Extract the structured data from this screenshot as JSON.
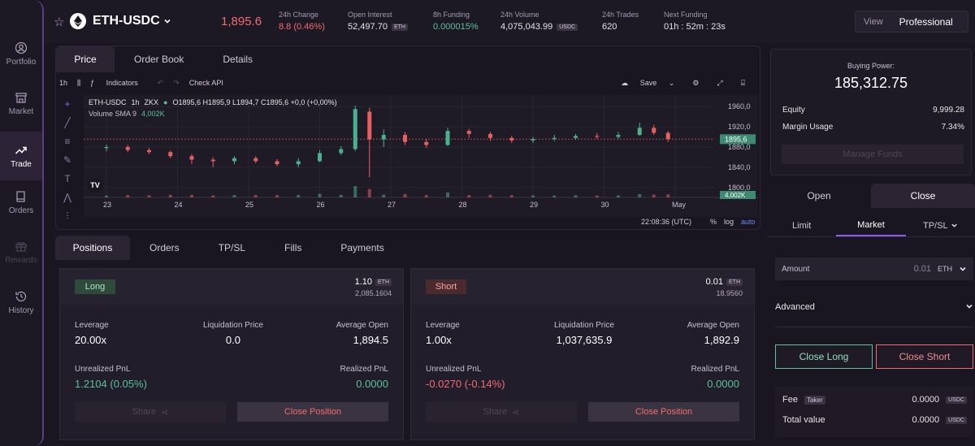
{
  "sidebar": {
    "items": [
      {
        "label": "Portfolio"
      },
      {
        "label": "Market"
      },
      {
        "label": "Trade"
      },
      {
        "label": "Orders"
      },
      {
        "label": "Rewards"
      },
      {
        "label": "History"
      }
    ]
  },
  "header": {
    "market": "ETH-USDC",
    "price": "1,895.6",
    "stats": [
      {
        "label": "24h Change",
        "value": "8.8 (0.46%)"
      },
      {
        "label": "Open Interest",
        "value": "52,497.70",
        "unit": "ETH"
      },
      {
        "label": "8h Funding",
        "value": "0.000015%"
      },
      {
        "label": "24h Volume",
        "value": "4,075,043.99",
        "unit": "USDC"
      },
      {
        "label": "24h Trades",
        "value": "620"
      },
      {
        "label": "Next Funding",
        "value": "01h : 52m : 23s"
      }
    ],
    "view_label": "View",
    "view_value": "Professional"
  },
  "chart_panel": {
    "tabs": [
      "Price",
      "Order Book",
      "Details"
    ],
    "toolbar": {
      "interval": "1h",
      "indicators": "Indicators",
      "check_api": "Check API",
      "save": "Save"
    },
    "legend": {
      "symbol": "ETH-USDC",
      "interval": "1h",
      "exchange": "ZKX",
      "ohlc": "O1895,6 H1895,9 L1894,7 C1895,6 +0,0 (+0,00%)",
      "volume": "Volume SMA 9",
      "volume_value": "4,002K"
    },
    "bottom": {
      "time": "22:08:36 (UTC)",
      "percent": "%",
      "log": "log",
      "auto": "auto"
    }
  },
  "chart_data": {
    "type": "candlestick",
    "x_ticks": [
      "23",
      "24",
      "25",
      "26",
      "27",
      "28",
      "29",
      "30",
      "May"
    ],
    "y_ticks": [
      1960,
      1920,
      1880,
      1840,
      1800
    ],
    "ylim": [
      1790,
      1970
    ],
    "last_price_label": "1895,6",
    "volume_label": "4,002K",
    "color_up": "#4caf8d",
    "color_down": "#e5605f",
    "series": [
      {
        "x": 0.0,
        "o": 1878,
        "c": 1880,
        "h": 1885,
        "l": 1872
      },
      {
        "x": 0.3,
        "o": 1880,
        "c": 1874,
        "h": 1884,
        "l": 1870
      },
      {
        "x": 0.6,
        "o": 1874,
        "c": 1870,
        "h": 1878,
        "l": 1866
      },
      {
        "x": 0.9,
        "o": 1870,
        "c": 1862,
        "h": 1873,
        "l": 1858
      },
      {
        "x": 1.2,
        "o": 1862,
        "c": 1855,
        "h": 1866,
        "l": 1846
      },
      {
        "x": 1.5,
        "o": 1855,
        "c": 1852,
        "h": 1860,
        "l": 1840
      },
      {
        "x": 1.8,
        "o": 1852,
        "c": 1858,
        "h": 1862,
        "l": 1846
      },
      {
        "x": 2.1,
        "o": 1858,
        "c": 1852,
        "h": 1862,
        "l": 1848
      },
      {
        "x": 2.4,
        "o": 1852,
        "c": 1846,
        "h": 1856,
        "l": 1842
      },
      {
        "x": 2.7,
        "o": 1846,
        "c": 1852,
        "h": 1858,
        "l": 1840
      },
      {
        "x": 3.0,
        "o": 1852,
        "c": 1868,
        "h": 1874,
        "l": 1850
      },
      {
        "x": 3.3,
        "o": 1868,
        "c": 1876,
        "h": 1882,
        "l": 1864
      },
      {
        "x": 3.5,
        "o": 1876,
        "c": 1955,
        "h": 1962,
        "l": 1872
      },
      {
        "x": 3.7,
        "o": 1950,
        "c": 1895,
        "h": 1958,
        "l": 1820
      },
      {
        "x": 3.9,
        "o": 1895,
        "c": 1904,
        "h": 1915,
        "l": 1880
      },
      {
        "x": 4.2,
        "o": 1904,
        "c": 1890,
        "h": 1910,
        "l": 1884
      },
      {
        "x": 4.5,
        "o": 1890,
        "c": 1884,
        "h": 1896,
        "l": 1878
      },
      {
        "x": 4.8,
        "o": 1884,
        "c": 1912,
        "h": 1918,
        "l": 1882
      },
      {
        "x": 5.1,
        "o": 1912,
        "c": 1906,
        "h": 1916,
        "l": 1898
      },
      {
        "x": 5.4,
        "o": 1906,
        "c": 1898,
        "h": 1910,
        "l": 1892
      },
      {
        "x": 5.7,
        "o": 1898,
        "c": 1893,
        "h": 1902,
        "l": 1888
      },
      {
        "x": 6.0,
        "o": 1893,
        "c": 1896,
        "h": 1900,
        "l": 1888
      },
      {
        "x": 6.3,
        "o": 1896,
        "c": 1898,
        "h": 1904,
        "l": 1892
      },
      {
        "x": 6.6,
        "o": 1898,
        "c": 1902,
        "h": 1906,
        "l": 1894
      },
      {
        "x": 6.9,
        "o": 1902,
        "c": 1900,
        "h": 1908,
        "l": 1896
      },
      {
        "x": 7.2,
        "o": 1900,
        "c": 1904,
        "h": 1910,
        "l": 1896
      },
      {
        "x": 7.5,
        "o": 1904,
        "c": 1918,
        "h": 1928,
        "l": 1902
      },
      {
        "x": 7.7,
        "o": 1918,
        "c": 1908,
        "h": 1924,
        "l": 1904
      },
      {
        "x": 7.9,
        "o": 1908,
        "c": 1896,
        "h": 1912,
        "l": 1890
      }
    ]
  },
  "positions_panel": {
    "tabs": [
      "Positions",
      "Orders",
      "TP/SL",
      "Fills",
      "Payments"
    ],
    "cards": [
      {
        "side": "Long",
        "size": "1.10",
        "size_unit": "ETH",
        "notional": "2,085.1604",
        "leverage_label": "Leverage",
        "leverage": "20.00x",
        "liq_label": "Liquidation Price",
        "liq": "0.0",
        "avg_label": "Average Open",
        "avg": "1,894.5",
        "upnl_label": "Unrealized PnL",
        "upnl": "1.2104 (0.05%)",
        "rpnl_label": "Realized PnL",
        "rpnl": "0.0000",
        "share": "Share",
        "close": "Close Position"
      },
      {
        "side": "Short",
        "size": "0.01",
        "size_unit": "ETH",
        "notional": "18.9560",
        "leverage_label": "Leverage",
        "leverage": "1.00x",
        "liq_label": "Liquidation Price",
        "liq": "1,037,635.9",
        "avg_label": "Average Open",
        "avg": "1,892.9",
        "upnl_label": "Unrealized PnL",
        "upnl": "-0.0270 (-0.14%)",
        "rpnl_label": "Realized PnL",
        "rpnl": "0.0000",
        "share": "Share",
        "close": "Close Position"
      }
    ]
  },
  "account": {
    "buying_power_label": "Buying Power:",
    "buying_power": "185,312.75",
    "equity_label": "Equity",
    "equity": "9,999.28",
    "margin_label": "Margin Usage",
    "margin": "7.34%",
    "manage_funds": "Manage Funds"
  },
  "order_form": {
    "open_close": [
      "Open",
      "Close"
    ],
    "types": [
      "Limit",
      "Market",
      "TP/SL"
    ],
    "amount_label": "Amount",
    "amount_value": "0.01",
    "amount_unit": "ETH",
    "advanced": "Advanced",
    "close_long": "Close Long",
    "close_short": "Close Short",
    "fee_label": "Fee",
    "fee_tag": "Taker",
    "fee_value": "0.0000",
    "fee_unit": "USDC",
    "total_label": "Total value",
    "total_value": "0.0000",
    "total_unit": "USDC"
  }
}
